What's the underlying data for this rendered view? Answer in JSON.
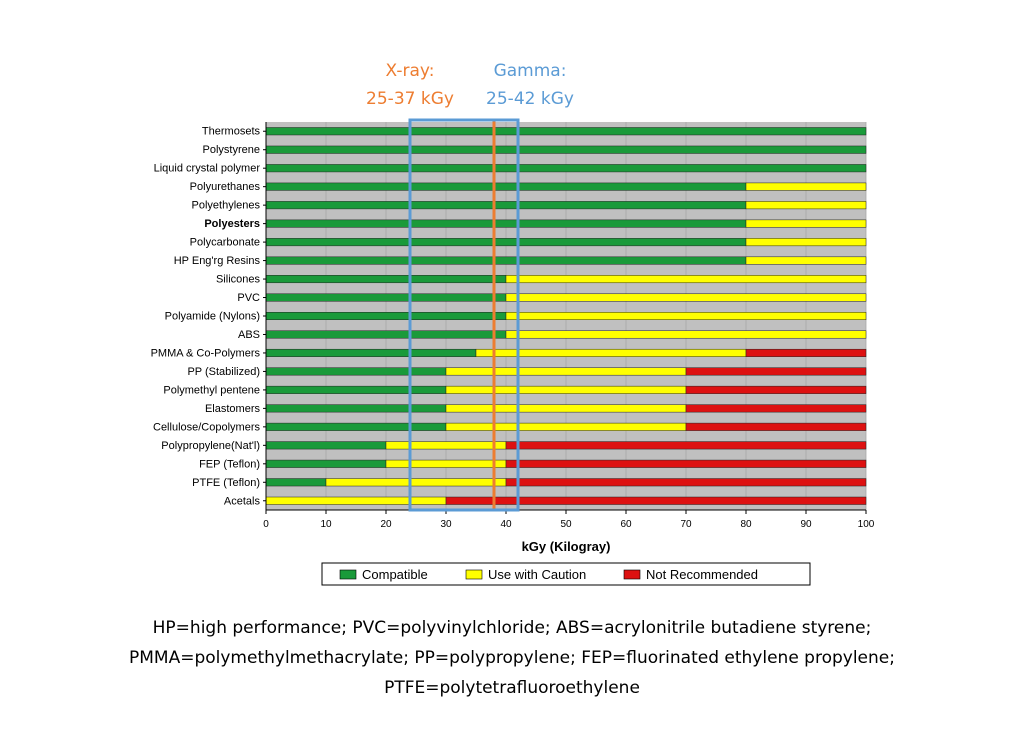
{
  "chart_data": {
    "type": "bar",
    "subtype": "stacked-horizontal",
    "title": "",
    "xlabel": "kGy (Kilogray)",
    "ylabel": "",
    "xlim": [
      0,
      100
    ],
    "xticks": [
      0,
      10,
      20,
      30,
      40,
      50,
      60,
      70,
      80,
      90,
      100
    ],
    "grid": false,
    "categories": [
      "Thermosets",
      "Polystyrene",
      "Liquid crystal polymer",
      "Polyurethanes",
      "Polyethylenes",
      "Polyesters",
      "Polycarbonate",
      "HP Eng'rg Resins",
      "Silicones",
      "PVC",
      "Polyamide (Nylons)",
      "ABS",
      "PMMA & Co-Polymers",
      "PP (Stabilized)",
      "Polymethyl pentene",
      "Elastomers",
      "Cellulose/Copolymers",
      "Polypropylene(Nat'l)",
      "FEP (Teflon)",
      "PTFE (Teflon)",
      "Acetals"
    ],
    "bold_categories": [
      "Polyesters"
    ],
    "series": [
      {
        "name": "Compatible",
        "color": "#1a9a3a",
        "values": [
          100,
          100,
          100,
          80,
          80,
          80,
          80,
          80,
          40,
          40,
          40,
          40,
          35,
          30,
          30,
          30,
          30,
          20,
          20,
          10,
          0
        ]
      },
      {
        "name": "Use with Caution",
        "color": "#ffff00",
        "values": [
          0,
          0,
          0,
          20,
          20,
          20,
          20,
          20,
          60,
          60,
          60,
          60,
          45,
          40,
          40,
          40,
          40,
          20,
          20,
          30,
          30
        ]
      },
      {
        "name": "Not Recommended",
        "color": "#dd1111",
        "values": [
          0,
          0,
          0,
          0,
          0,
          0,
          0,
          0,
          0,
          0,
          0,
          0,
          20,
          30,
          30,
          30,
          30,
          60,
          60,
          60,
          70
        ]
      }
    ],
    "legend": {
      "position": "bottom",
      "entries": [
        "Compatible",
        "Use with Caution",
        "Not Recommended"
      ]
    },
    "annotations": [
      {
        "id": "xray",
        "line1": "X-ray:",
        "line2": "25-37 kGy",
        "range": [
          24,
          38
        ],
        "color": "#ed7d31"
      },
      {
        "id": "gamma",
        "line1": "Gamma:",
        "line2": "25-42 kGy",
        "range": [
          24,
          42
        ],
        "color": "#5b9bd5"
      }
    ],
    "background_color": "#c0c0c0"
  },
  "footnote": {
    "line1": "HP=high performance; PVC=polyvinylchloride; ABS=acrylonitrile butadiene styrene;",
    "line2": "PMMA=polymethylmethacrylate; PP=polypropylene; FEP=fluorinated ethylene propylene;",
    "line3": "PTFE=polytetrafluoroethylene"
  }
}
